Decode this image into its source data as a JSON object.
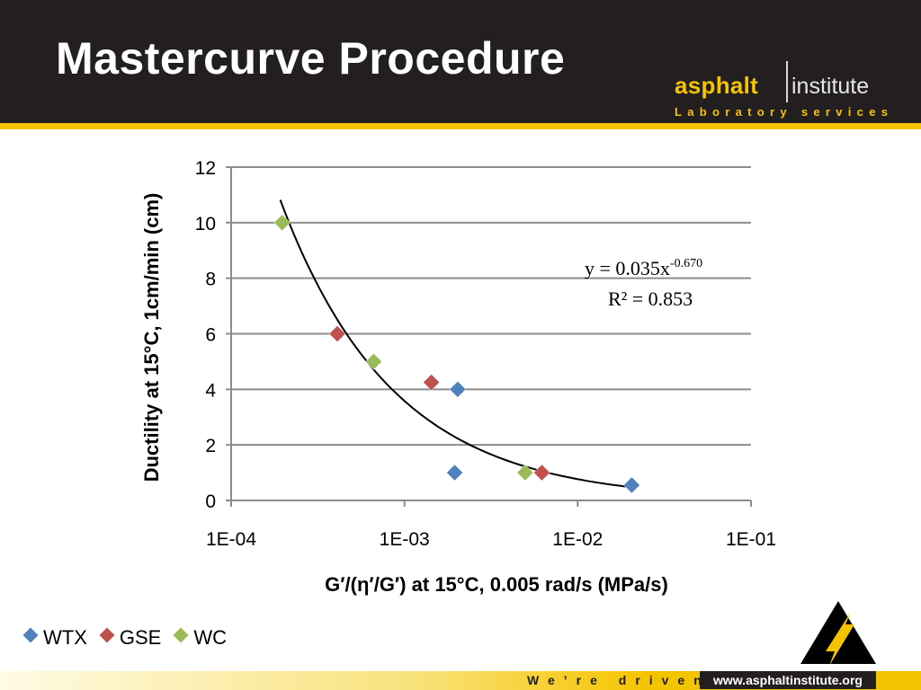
{
  "slide": {
    "title": "Mastercurve Procedure"
  },
  "brand": {
    "name_bold": "asphalt",
    "name_light": "institute",
    "tagline": "Laboratory services"
  },
  "footer": {
    "slogan": "We’re driven.",
    "url": "www.asphaltinstitute.org"
  },
  "colors": {
    "header_bg": "#231f20",
    "accent_yellow": "#f5c400",
    "gridline": "#8c8c8c",
    "trendline": "#000000"
  },
  "chart_data": {
    "type": "scatter",
    "xlabel": "G′/(η′/G′) at 15°C, 0.005 rad/s (MPa/s)",
    "ylabel": "Ductility at 15°C, 1cm/min (cm)",
    "x_scale": "log",
    "xlim": [
      0.0001,
      0.1
    ],
    "ylim": [
      0,
      12
    ],
    "x_ticks": [
      0.0001,
      0.001,
      0.01,
      0.1
    ],
    "x_tick_labels": [
      "1E-04",
      "1E-03",
      "1E-02",
      "1E-01"
    ],
    "y_ticks": [
      0,
      2,
      4,
      6,
      8,
      10,
      12
    ],
    "y_tick_labels": [
      "0",
      "2",
      "4",
      "6",
      "8",
      "10",
      "12"
    ],
    "grid": "horizontal",
    "legend_position": "bottom-left",
    "series": [
      {
        "name": "WTX",
        "color": "#4f81bd",
        "x": [
          0.00195,
          0.00203,
          0.0205
        ],
        "y": [
          1.0,
          4.0,
          0.55
        ]
      },
      {
        "name": "GSE",
        "color": "#c0504d",
        "x": [
          0.00041,
          0.00143,
          0.00621
        ],
        "y": [
          6.0,
          4.25,
          1.0
        ]
      },
      {
        "name": "WC",
        "color": "#9bbb59",
        "x": [
          0.000197,
          0.000665,
          0.00497
        ],
        "y": [
          10.0,
          5.0,
          1.0
        ]
      }
    ],
    "trendline": {
      "type": "power",
      "coefficient": 0.035,
      "exponent": -0.67,
      "x_range": [
        0.000192,
        0.021
      ],
      "equation_prefix": "y = 0.035x",
      "equation_exponent": "-0.670",
      "r_squared": "R² = 0.853"
    }
  }
}
